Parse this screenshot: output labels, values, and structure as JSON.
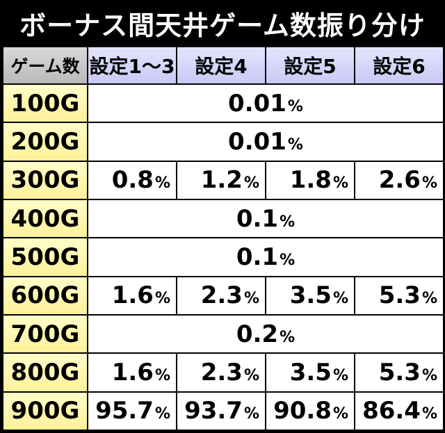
{
  "title": "ボーナス間天井ゲーム数振り分け",
  "header": {
    "first": "ゲーム数",
    "settings": [
      "設定1～3",
      "設定4",
      "設定5",
      "設定6"
    ]
  },
  "percent_symbol": "%",
  "rows": [
    {
      "label": "100G",
      "merged": true,
      "value": "0.01"
    },
    {
      "label": "200G",
      "merged": true,
      "value": "0.01"
    },
    {
      "label": "300G",
      "merged": false,
      "values": [
        "0.8",
        "1.2",
        "1.8",
        "2.6"
      ]
    },
    {
      "label": "400G",
      "merged": true,
      "value": "0.1"
    },
    {
      "label": "500G",
      "merged": true,
      "value": "0.1"
    },
    {
      "label": "600G",
      "merged": false,
      "values": [
        "1.6",
        "2.3",
        "3.5",
        "5.3"
      ]
    },
    {
      "label": "700G",
      "merged": true,
      "value": "0.2"
    },
    {
      "label": "800G",
      "merged": false,
      "values": [
        "1.6",
        "2.3",
        "3.5",
        "5.3"
      ]
    },
    {
      "label": "900G",
      "merged": false,
      "values": [
        "95.7",
        "93.7",
        "90.8",
        "86.4"
      ]
    }
  ]
}
